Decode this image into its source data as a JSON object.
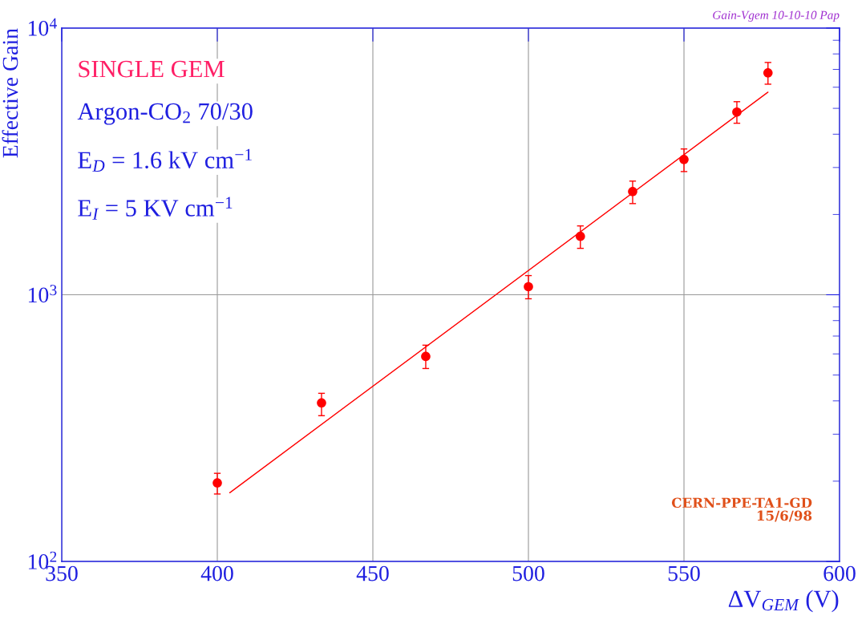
{
  "chart_data": {
    "type": "scatter",
    "xlabel": "ΔV$_{GEM}$ (V)",
    "ylabel": "Effective Gain",
    "log": "y",
    "grid": true,
    "xlim": [
      350,
      600
    ],
    "xticks": [
      350,
      400,
      450,
      500,
      550,
      600
    ],
    "ylim": [
      100,
      10000
    ],
    "yticks": [
      {
        "value": 100,
        "label": "10$^{2}$"
      },
      {
        "value": 1000,
        "label": "10$^{3}$"
      },
      {
        "value": 10000,
        "label": "10$^{4}$"
      }
    ],
    "series": [
      {
        "marker": "circle",
        "color": "#ff0000",
        "x": [
          400,
          433.5,
          467,
          500,
          516.7,
          533.5,
          550,
          567,
          577
        ],
        "values": [
          197,
          393,
          587,
          1072,
          1656,
          2438,
          3215,
          4842,
          6793
        ],
        "errors": [
          [
            179,
            214
          ],
          [
            352,
            427
          ],
          [
            529,
            647
          ],
          [
            966,
            1180
          ],
          [
            1493,
            1812
          ],
          [
            2197,
            2668
          ],
          [
            2897,
            3521
          ],
          [
            4397,
            5296
          ],
          [
            6160,
            7431
          ]
        ]
      },
      {
        "type": "line",
        "color": "#ff0000",
        "x": [
          404,
          577
        ],
        "values": [
          181,
          5750
        ]
      }
    ],
    "annotations": [
      "SINGLE GEM",
      "Argon-CO$_{2}$ 70/30",
      "E$_{D}$ = 1.6 kV cm$^{−1}$",
      "E$_{I}$ = 5 KV cm$^{−1}$",
      "CERN-PPE-TA1-GD\n15/6/98",
      "Gain-Vgem 10-10-10 Pap"
    ]
  }
}
